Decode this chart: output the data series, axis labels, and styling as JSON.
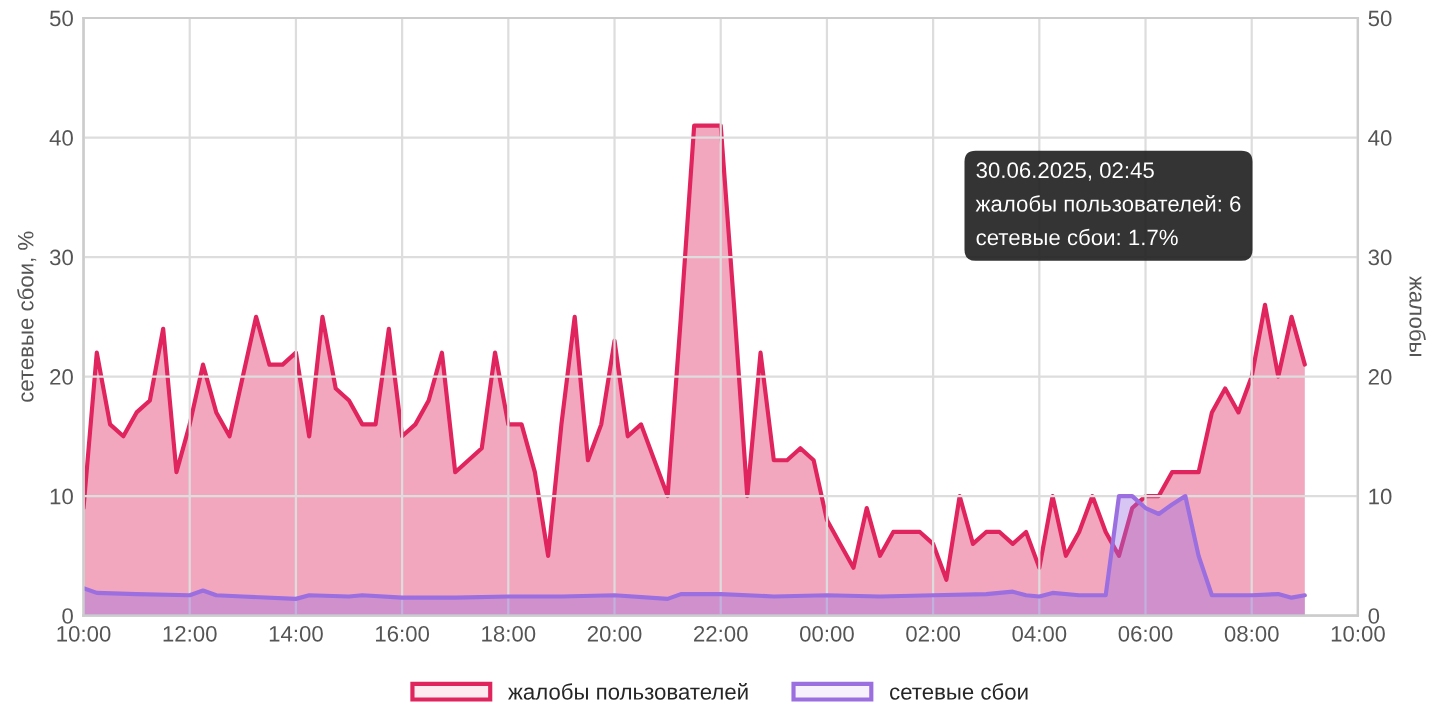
{
  "chart_data": {
    "type": "area",
    "ylabel": "сетевые сбои, %",
    "y2label": "жалобы",
    "xlim": [
      "2025-06-29T10:00",
      "2025-06-30T10:00"
    ],
    "xticks": [
      {
        "value": "2025-06-29T10:00",
        "label": "10:00"
      },
      {
        "value": "2025-06-29T12:00",
        "label": "12:00"
      },
      {
        "value": "2025-06-29T14:00",
        "label": "14:00"
      },
      {
        "value": "2025-06-29T16:00",
        "label": "16:00"
      },
      {
        "value": "2025-06-29T18:00",
        "label": "18:00"
      },
      {
        "value": "2025-06-29T20:00",
        "label": "20:00"
      },
      {
        "value": "2025-06-29T22:00",
        "label": "22:00"
      },
      {
        "value": "2025-06-30T00:00",
        "label": "00:00"
      },
      {
        "value": "2025-06-30T02:00",
        "label": "02:00"
      },
      {
        "value": "2025-06-30T04:00",
        "label": "04:00"
      },
      {
        "value": "2025-06-30T06:00",
        "label": "06:00"
      },
      {
        "value": "2025-06-30T08:00",
        "label": "08:00"
      },
      {
        "value": "2025-06-30T10:00",
        "label": "10:00"
      }
    ],
    "ylim": [
      0,
      50
    ],
    "yticks": [
      0,
      10,
      20,
      30,
      40,
      50
    ],
    "y2lim": [
      0,
      50
    ],
    "y2ticks": [
      0,
      10,
      20,
      30,
      40,
      50
    ],
    "grid": true,
    "legend": "bottom",
    "series": [
      {
        "name": "жалобы пользователей",
        "color": "#e0245e",
        "axis": "y2",
        "x": [
          "2025-06-29T10:00",
          "2025-06-29T10:15",
          "2025-06-29T10:30",
          "2025-06-29T10:45",
          "2025-06-29T11:00",
          "2025-06-29T11:15",
          "2025-06-29T11:30",
          "2025-06-29T11:45",
          "2025-06-29T12:00",
          "2025-06-29T12:15",
          "2025-06-29T12:30",
          "2025-06-29T12:45",
          "2025-06-29T13:00",
          "2025-06-29T13:15",
          "2025-06-29T13:30",
          "2025-06-29T13:45",
          "2025-06-29T14:00",
          "2025-06-29T14:15",
          "2025-06-29T14:30",
          "2025-06-29T14:45",
          "2025-06-29T15:00",
          "2025-06-29T15:15",
          "2025-06-29T15:30",
          "2025-06-29T15:45",
          "2025-06-29T16:00",
          "2025-06-29T16:15",
          "2025-06-29T16:30",
          "2025-06-29T16:45",
          "2025-06-29T17:00",
          "2025-06-29T17:15",
          "2025-06-29T17:30",
          "2025-06-29T17:45",
          "2025-06-29T18:00",
          "2025-06-29T18:15",
          "2025-06-29T18:30",
          "2025-06-29T18:45",
          "2025-06-29T19:00",
          "2025-06-29T19:15",
          "2025-06-29T19:30",
          "2025-06-29T19:45",
          "2025-06-29T20:00",
          "2025-06-29T20:15",
          "2025-06-29T20:30",
          "2025-06-29T20:45",
          "2025-06-29T21:00",
          "2025-06-29T21:15",
          "2025-06-29T21:30",
          "2025-06-29T21:45",
          "2025-06-29T22:00",
          "2025-06-29T22:15",
          "2025-06-29T22:30",
          "2025-06-29T22:45",
          "2025-06-29T23:00",
          "2025-06-29T23:15",
          "2025-06-29T23:30",
          "2025-06-29T23:45",
          "2025-06-30T00:00",
          "2025-06-30T00:15",
          "2025-06-30T00:30",
          "2025-06-30T00:45",
          "2025-06-30T01:00",
          "2025-06-30T01:15",
          "2025-06-30T01:30",
          "2025-06-30T01:45",
          "2025-06-30T02:00",
          "2025-06-30T02:15",
          "2025-06-30T02:30",
          "2025-06-30T02:45",
          "2025-06-30T03:00",
          "2025-06-30T03:15",
          "2025-06-30T03:30",
          "2025-06-30T03:45",
          "2025-06-30T04:00",
          "2025-06-30T04:15",
          "2025-06-30T04:30",
          "2025-06-30T04:45",
          "2025-06-30T05:00",
          "2025-06-30T05:15",
          "2025-06-30T05:30",
          "2025-06-30T05:45",
          "2025-06-30T06:00",
          "2025-06-30T06:15",
          "2025-06-30T06:30",
          "2025-06-30T06:45",
          "2025-06-30T07:00",
          "2025-06-30T07:15",
          "2025-06-30T07:30",
          "2025-06-30T07:45",
          "2025-06-30T08:00",
          "2025-06-30T08:15",
          "2025-06-30T08:30",
          "2025-06-30T08:45",
          "2025-06-30T09:00"
        ],
        "values": [
          9,
          22,
          16,
          15,
          17,
          18,
          24,
          12,
          16,
          21,
          17,
          15,
          20,
          25,
          21,
          21,
          22,
          15,
          25,
          19,
          18,
          16,
          16,
          24,
          15,
          16,
          18,
          22,
          12,
          13,
          14,
          22,
          16,
          16,
          12,
          5,
          16,
          25,
          13,
          16,
          23,
          15,
          16,
          13,
          10,
          25,
          41,
          41,
          41,
          26,
          10,
          22,
          13,
          13,
          14,
          13,
          8,
          6,
          4,
          9,
          5,
          7,
          7,
          7,
          6,
          3,
          10,
          6,
          7,
          7,
          6,
          7,
          4,
          10,
          5,
          7,
          10,
          7,
          5,
          9,
          10,
          10,
          12,
          12,
          12,
          17,
          19,
          17,
          20,
          26,
          20,
          25,
          21
        ]
      },
      {
        "name": "сетевые сбои",
        "color": "#9b6fe0",
        "axis": "y",
        "x": [
          "2025-06-29T10:00",
          "2025-06-29T10:15",
          "2025-06-29T11:00",
          "2025-06-29T12:00",
          "2025-06-29T12:15",
          "2025-06-29T12:30",
          "2025-06-29T13:00",
          "2025-06-29T14:00",
          "2025-06-29T14:15",
          "2025-06-29T15:00",
          "2025-06-29T15:15",
          "2025-06-29T16:00",
          "2025-06-29T17:00",
          "2025-06-29T18:00",
          "2025-06-29T19:00",
          "2025-06-29T20:00",
          "2025-06-29T21:00",
          "2025-06-29T21:15",
          "2025-06-29T22:00",
          "2025-06-29T23:00",
          "2025-06-30T00:00",
          "2025-06-30T01:00",
          "2025-06-30T02:00",
          "2025-06-30T03:00",
          "2025-06-30T03:30",
          "2025-06-30T03:45",
          "2025-06-30T04:00",
          "2025-06-30T04:15",
          "2025-06-30T04:45",
          "2025-06-30T05:15",
          "2025-06-30T05:30",
          "2025-06-30T05:45",
          "2025-06-30T06:00",
          "2025-06-30T06:15",
          "2025-06-30T06:30",
          "2025-06-30T06:45",
          "2025-06-30T07:00",
          "2025-06-30T07:15",
          "2025-06-30T08:00",
          "2025-06-30T08:30",
          "2025-06-30T08:45",
          "2025-06-30T09:00"
        ],
        "values": [
          2.3,
          1.9,
          1.8,
          1.7,
          2.1,
          1.7,
          1.6,
          1.4,
          1.7,
          1.6,
          1.7,
          1.5,
          1.5,
          1.6,
          1.6,
          1.7,
          1.4,
          1.8,
          1.8,
          1.6,
          1.7,
          1.6,
          1.7,
          1.8,
          2.0,
          1.7,
          1.6,
          1.9,
          1.7,
          1.7,
          10,
          10,
          9,
          8.5,
          9.3,
          10,
          5,
          1.7,
          1.7,
          1.8,
          1.5,
          1.7
        ]
      }
    ],
    "annotations": [
      "30.06.2025, 02:45",
      "жалобы пользователей: 6",
      "сетевые сбои: 1.7%"
    ]
  }
}
